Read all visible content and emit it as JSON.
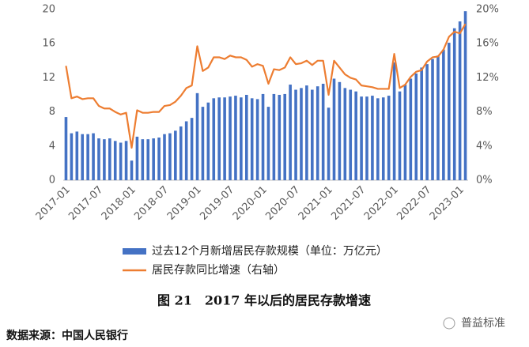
{
  "chart_data": {
    "type": "bar-line",
    "categories": [
      "2017-01",
      null,
      null,
      null,
      null,
      null,
      "2017-07",
      null,
      null,
      null,
      null,
      null,
      "2018-01",
      null,
      null,
      null,
      null,
      null,
      "2018-07",
      null,
      null,
      null,
      null,
      null,
      "2019-01",
      null,
      null,
      null,
      null,
      null,
      "2019-07",
      null,
      null,
      null,
      null,
      null,
      "2020-01",
      null,
      null,
      null,
      null,
      null,
      "2020-07",
      null,
      null,
      null,
      null,
      null,
      "2021-01",
      null,
      null,
      null,
      null,
      null,
      "2021-07",
      null,
      null,
      null,
      null,
      null,
      "2022-01",
      null,
      null,
      null,
      null,
      null,
      "2022-07",
      null,
      null,
      null,
      null,
      null,
      "2023-01",
      null
    ],
    "series": [
      {
        "name": "过去12个月新增居民存款规模（单位：万亿元）",
        "type": "bar",
        "color": "#4472c4",
        "values": [
          7.4,
          5.5,
          5.7,
          5.4,
          5.4,
          5.5,
          4.9,
          4.8,
          4.9,
          4.6,
          4.4,
          4.6,
          2.3,
          5.1,
          4.8,
          4.8,
          4.9,
          5.0,
          5.4,
          5.5,
          5.8,
          6.3,
          6.9,
          7.3,
          10.2,
          8.6,
          9.1,
          9.6,
          9.7,
          9.7,
          9.8,
          9.9,
          9.7,
          10.0,
          9.6,
          9.5,
          10.1,
          8.6,
          10.1,
          10.0,
          10.1,
          11.2,
          10.6,
          10.8,
          11.1,
          10.6,
          11.0,
          11.3,
          8.5,
          11.9,
          11.5,
          10.8,
          10.6,
          10.4,
          9.8,
          9.8,
          9.9,
          9.6,
          9.7,
          9.9,
          13.8,
          10.4,
          11.2,
          11.9,
          12.5,
          13.2,
          13.6,
          14.2,
          14.6,
          15.3,
          16.1,
          17.8,
          18.6,
          19.8
        ]
      },
      {
        "name": "居民存款同比增速（右轴）",
        "type": "line",
        "color": "#ed7d31",
        "axis": "y2",
        "values": [
          13.4,
          9.6,
          9.8,
          9.5,
          9.6,
          9.6,
          8.7,
          8.4,
          8.4,
          8.0,
          7.7,
          7.9,
          3.8,
          8.2,
          7.9,
          7.9,
          8.0,
          8.0,
          8.7,
          8.8,
          9.2,
          9.9,
          10.8,
          11.1,
          15.7,
          12.8,
          13.2,
          14.4,
          14.4,
          14.2,
          14.6,
          14.4,
          14.4,
          14.1,
          13.3,
          13.6,
          13.4,
          11.3,
          13.0,
          12.9,
          13.2,
          14.4,
          13.6,
          13.7,
          14.0,
          13.5,
          14.0,
          14.0,
          10.0,
          14.0,
          13.2,
          12.4,
          12.0,
          11.8,
          11.1,
          11.0,
          10.9,
          10.7,
          10.7,
          10.7,
          14.8,
          10.8,
          11.2,
          12.1,
          12.7,
          12.9,
          13.9,
          14.4,
          14.5,
          15.3,
          16.8,
          17.4,
          17.2,
          18.3
        ]
      }
    ],
    "ylim": [
      0,
      20
    ],
    "yticks": [
      0,
      4,
      8,
      12,
      16,
      20
    ],
    "y2lim": [
      0,
      20
    ],
    "y2ticks": [
      {
        "value": 0,
        "label": "0%"
      },
      {
        "value": 4,
        "label": "4%"
      },
      {
        "value": 8,
        "label": "8%"
      },
      {
        "value": 12,
        "label": "12%"
      },
      {
        "value": 16,
        "label": "16%"
      },
      {
        "value": 20,
        "label": "20%"
      }
    ],
    "grid": false,
    "title": "图 21　2017 年以后的居民存款增速",
    "source": "数据来源：中国人民银行",
    "watermark": "普益标准"
  }
}
